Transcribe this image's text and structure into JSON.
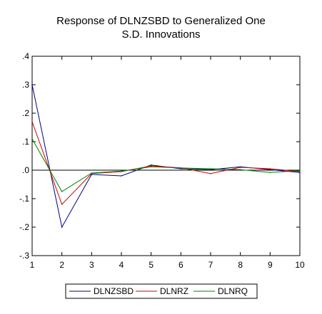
{
  "chart_data": {
    "type": "line",
    "title_line1": "Response of DLNZSBD to Generalized One",
    "title_line2": "S.D. Innovations",
    "xlabel": "",
    "ylabel": "",
    "x": [
      1,
      2,
      3,
      4,
      5,
      6,
      7,
      8,
      9,
      10
    ],
    "xlim": [
      1,
      10
    ],
    "ylim": [
      -0.3,
      0.4
    ],
    "y_ticks": [
      {
        "value": 0.4,
        "label": ".4"
      },
      {
        "value": 0.3,
        "label": ".3"
      },
      {
        "value": 0.2,
        "label": ".2"
      },
      {
        "value": 0.1,
        "label": ".1"
      },
      {
        "value": 0.0,
        "label": ".0"
      },
      {
        "value": -0.1,
        "label": "-.1"
      },
      {
        "value": -0.2,
        "label": "-.2"
      },
      {
        "value": -0.3,
        "label": "-.3"
      }
    ],
    "x_ticks": [
      "1",
      "2",
      "3",
      "4",
      "5",
      "6",
      "7",
      "8",
      "9",
      "10"
    ],
    "grid": false,
    "zero_line": true,
    "legend_position": "bottom",
    "series": [
      {
        "name": "DLNZSBD",
        "color": "#000080",
        "values": [
          0.3,
          -0.2,
          -0.015,
          -0.02,
          0.018,
          0.005,
          0.002,
          0.012,
          0.002,
          -0.008
        ]
      },
      {
        "name": "DLNRZ",
        "color": "#cc0000",
        "values": [
          0.17,
          -0.12,
          -0.012,
          -0.005,
          0.015,
          0.008,
          -0.012,
          0.01,
          0.005,
          -0.005
        ]
      },
      {
        "name": "DLNRQ",
        "color": "#008000",
        "values": [
          0.11,
          -0.075,
          -0.01,
          -0.003,
          0.012,
          0.008,
          0.005,
          0.002,
          -0.008,
          -0.002
        ]
      }
    ]
  }
}
